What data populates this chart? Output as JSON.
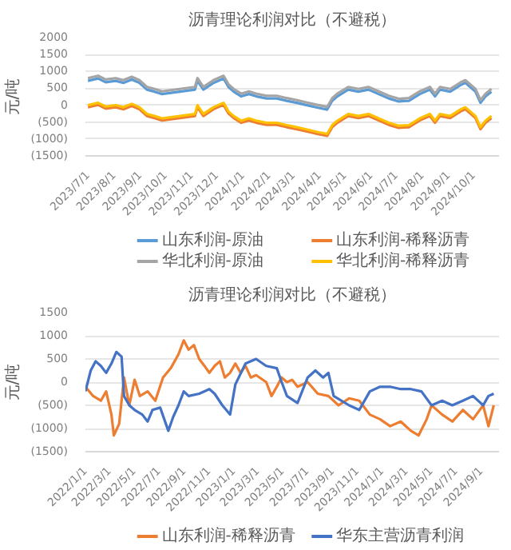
{
  "chart_data": [
    {
      "type": "line",
      "title": "沥青理论利润对比（不避税）",
      "ylabel": "元/吨",
      "legend": "bottom",
      "grid": "y",
      "x": [
        "2023-07-01",
        "2023-07-13",
        "2023-07-22",
        "2023-08-03",
        "2023-08-12",
        "2023-08-22",
        "2023-08-31",
        "2023-09-09",
        "2023-09-18",
        "2023-09-27",
        "2023-11-05",
        "2023-11-08",
        "2023-11-15",
        "2023-11-27",
        "2023-12-09",
        "2023-12-15",
        "2023-12-21",
        "2023-12-30",
        "2024-01-08",
        "2024-01-17",
        "2024-01-29",
        "2024-02-10",
        "2024-02-22",
        "2024-03-05",
        "2024-03-17",
        "2024-03-29",
        "2024-04-10",
        "2024-04-16",
        "2024-04-22",
        "2024-05-05",
        "2024-05-17",
        "2024-05-29",
        "2024-06-10",
        "2024-06-22",
        "2024-07-04",
        "2024-07-16",
        "2024-07-29",
        "2024-08-10",
        "2024-08-16",
        "2024-08-22",
        "2024-09-03",
        "2024-09-15",
        "2024-09-21",
        "2024-10-03",
        "2024-10-09",
        "2024-10-15",
        "2024-10-22"
      ],
      "xlim": [
        "2023-06-28",
        "2024-10-31"
      ],
      "xticks": [
        {
          "value": "2023-07-01",
          "label": "2023/7/1"
        },
        {
          "value": "2023-08-01",
          "label": "2023/8/1"
        },
        {
          "value": "2023-09-01",
          "label": "2023/9/1"
        },
        {
          "value": "2023-10-01",
          "label": "2023/10/1"
        },
        {
          "value": "2023-11-01",
          "label": "2023/11/1"
        },
        {
          "value": "2023-12-01",
          "label": "2023/12/1"
        },
        {
          "value": "2024-01-01",
          "label": "2024/1/1"
        },
        {
          "value": "2024-02-01",
          "label": "2024/2/1"
        },
        {
          "value": "2024-03-01",
          "label": "2024/3/1"
        },
        {
          "value": "2024-04-01",
          "label": "2024/4/1"
        },
        {
          "value": "2024-05-01",
          "label": "2024/5/1"
        },
        {
          "value": "2024-06-01",
          "label": "2024/6/1"
        },
        {
          "value": "2024-07-01",
          "label": "2024/7/1"
        },
        {
          "value": "2024-08-01",
          "label": "2024/8/1"
        },
        {
          "value": "2024-09-01",
          "label": "2024/9/1"
        },
        {
          "value": "2024-10-01",
          "label": "2024/10/1"
        }
      ],
      "ylim": [
        -1500,
        2000
      ],
      "yticks": [
        {
          "value": -1500,
          "label": "(1500)"
        },
        {
          "value": -1000,
          "label": "(1000)"
        },
        {
          "value": -500,
          "label": "(500)"
        },
        0,
        500,
        1000,
        1500,
        2000
      ],
      "series": [
        {
          "name": "山东利润-原油",
          "color": "#5b9bd5",
          "values": [
            720,
            790,
            680,
            720,
            660,
            760,
            660,
            460,
            400,
            330,
            460,
            720,
            460,
            660,
            790,
            530,
            400,
            260,
            330,
            260,
            200,
            200,
            130,
            70,
            0,
            -70,
            -130,
            130,
            260,
            460,
            400,
            460,
            330,
            200,
            110,
            130,
            330,
            460,
            260,
            460,
            400,
            590,
            660,
            400,
            70,
            260,
            400
          ]
        },
        {
          "name": "山东利润-稀释沥青",
          "color": "#ed7d31",
          "values": [
            -60,
            10,
            -100,
            -60,
            -120,
            -20,
            -120,
            -320,
            -380,
            -450,
            -320,
            -60,
            -320,
            -120,
            10,
            -250,
            -380,
            -520,
            -450,
            -520,
            -580,
            -580,
            -650,
            -710,
            -780,
            -850,
            -910,
            -650,
            -520,
            -320,
            -380,
            -320,
            -450,
            -580,
            -670,
            -650,
            -450,
            -320,
            -520,
            -320,
            -380,
            -190,
            -120,
            -380,
            -710,
            -520,
            -380
          ]
        },
        {
          "name": "华北利润-原油",
          "color": "#a5a5a5",
          "values": [
            800,
            870,
            760,
            800,
            740,
            840,
            740,
            540,
            480,
            410,
            540,
            800,
            540,
            740,
            870,
            610,
            480,
            340,
            410,
            340,
            280,
            280,
            210,
            150,
            80,
            10,
            -50,
            210,
            340,
            540,
            480,
            540,
            410,
            280,
            190,
            210,
            410,
            540,
            340,
            540,
            480,
            670,
            740,
            480,
            150,
            340,
            480
          ]
        },
        {
          "name": "华北利润-稀释沥青",
          "color": "#ffc000",
          "values": [
            0,
            70,
            -40,
            0,
            -60,
            40,
            -60,
            -260,
            -320,
            -390,
            -260,
            0,
            -260,
            -60,
            70,
            -190,
            -320,
            -460,
            -390,
            -460,
            -520,
            -520,
            -590,
            -650,
            -720,
            -790,
            -850,
            -590,
            -460,
            -260,
            -320,
            -260,
            -390,
            -520,
            -610,
            -590,
            -390,
            -260,
            -460,
            -260,
            -320,
            -130,
            -60,
            -320,
            -650,
            -460,
            -320
          ]
        }
      ]
    },
    {
      "type": "line",
      "title": "沥青理论利润对比（不避税）",
      "ylabel": "元/吨",
      "legend": "bottom",
      "grid": "y",
      "xlim": [
        "2022-01-01",
        "2024-10-15"
      ],
      "xticks": [
        {
          "value": "2022-01-01",
          "label": "2022/1/1"
        },
        {
          "value": "2022-03-01",
          "label": "2022/3/1"
        },
        {
          "value": "2022-05-01",
          "label": "2022/5/1"
        },
        {
          "value": "2022-07-01",
          "label": "2022/7/1"
        },
        {
          "value": "2022-09-01",
          "label": "2022/9/1"
        },
        {
          "value": "2022-11-01",
          "label": "2022/11/1"
        },
        {
          "value": "2023-01-01",
          "label": "2023/1/1"
        },
        {
          "value": "2023-03-01",
          "label": "2023/3/1"
        },
        {
          "value": "2023-05-01",
          "label": "2023/5/1"
        },
        {
          "value": "2023-07-01",
          "label": "2023/7/1"
        },
        {
          "value": "2023-09-01",
          "label": "2023/9/1"
        },
        {
          "value": "2023-11-01",
          "label": "2023/11/1"
        },
        {
          "value": "2024-01-01",
          "label": "2024/1/1"
        },
        {
          "value": "2024-03-01",
          "label": "2024/3/1"
        },
        {
          "value": "2024-05-01",
          "label": "2024/5/1"
        },
        {
          "value": "2024-07-01",
          "label": "2024/7/1"
        },
        {
          "value": "2024-09-01",
          "label": "2024/9/1"
        }
      ],
      "ylim": [
        -1500,
        1500
      ],
      "yticks": [
        {
          "value": -1500,
          "label": "(1500)"
        },
        {
          "value": -1000,
          "label": "(1000)"
        },
        {
          "value": -500,
          "label": "(500)"
        },
        0,
        500,
        1000,
        1500
      ],
      "series": [
        {
          "name": "山东利润-稀释沥青",
          "color": "#ed7d31",
          "x": [
            "2022-01-01",
            "2022-01-20",
            "2022-02-08",
            "2022-02-21",
            "2022-03-06",
            "2022-03-12",
            "2022-03-25",
            "2022-04-06",
            "2022-04-19",
            "2022-05-02",
            "2022-05-15",
            "2022-06-03",
            "2022-06-22",
            "2022-07-11",
            "2022-07-30",
            "2022-08-18",
            "2022-08-31",
            "2022-09-12",
            "2022-09-25",
            "2022-10-08",
            "2022-10-21",
            "2022-11-02",
            "2022-11-15",
            "2022-11-28",
            "2022-12-10",
            "2022-12-23",
            "2023-01-05",
            "2023-01-18",
            "2023-01-30",
            "2023-02-12",
            "2023-02-25",
            "2023-03-22",
            "2023-04-04",
            "2023-04-17",
            "2023-04-29",
            "2023-05-12",
            "2023-05-25",
            "2023-06-07",
            "2023-07-02",
            "2023-07-27",
            "2023-08-22",
            "2023-09-16",
            "2023-10-12",
            "2023-11-06",
            "2023-12-02",
            "2023-12-27",
            "2024-01-21",
            "2024-02-16",
            "2024-03-12",
            "2024-03-31",
            "2024-04-20",
            "2024-05-02",
            "2024-05-28",
            "2024-06-22",
            "2024-07-18",
            "2024-08-12",
            "2024-09-06",
            "2024-09-19",
            "2024-10-02"
          ],
          "values": [
            -100,
            -300,
            -400,
            -200,
            -700,
            -1150,
            -900,
            100,
            -500,
            50,
            -300,
            -200,
            -400,
            100,
            300,
            600,
            900,
            700,
            800,
            500,
            350,
            200,
            350,
            450,
            100,
            200,
            400,
            200,
            350,
            100,
            150,
            0,
            -300,
            -100,
            100,
            0,
            50,
            -100,
            0,
            -250,
            -300,
            -500,
            -350,
            -400,
            -700,
            -800,
            -950,
            -850,
            -1050,
            -1150,
            -800,
            -500,
            -700,
            -850,
            -600,
            -800,
            -500,
            -950,
            -500
          ]
        },
        {
          "name": "华东主营沥青利润",
          "color": "#4472c4",
          "x": [
            "2022-01-01",
            "2022-01-14",
            "2022-01-26",
            "2022-02-08",
            "2022-02-21",
            "2022-03-06",
            "2022-03-18",
            "2022-03-31",
            "2022-04-06",
            "2022-04-19",
            "2022-05-02",
            "2022-05-21",
            "2022-06-03",
            "2022-06-15",
            "2022-07-04",
            "2022-07-24",
            "2022-08-05",
            "2022-08-18",
            "2022-08-31",
            "2022-09-12",
            "2022-10-08",
            "2022-11-02",
            "2022-11-15",
            "2022-12-04",
            "2022-12-23",
            "2023-01-05",
            "2023-01-30",
            "2023-02-25",
            "2023-03-22",
            "2023-04-17",
            "2023-04-29",
            "2023-05-12",
            "2023-06-07",
            "2023-07-02",
            "2023-07-21",
            "2023-08-09",
            "2023-08-22",
            "2023-09-04",
            "2023-10-12",
            "2023-11-06",
            "2023-12-02",
            "2023-12-27",
            "2024-01-21",
            "2024-02-16",
            "2024-03-12",
            "2024-04-07",
            "2024-05-02",
            "2024-05-28",
            "2024-06-22",
            "2024-07-18",
            "2024-08-12",
            "2024-09-06",
            "2024-09-19",
            "2024-10-02"
          ],
          "values": [
            -200,
            250,
            450,
            350,
            200,
            400,
            650,
            550,
            -300,
            -500,
            -600,
            -700,
            -850,
            -600,
            -550,
            -1050,
            -750,
            -500,
            -200,
            -300,
            -250,
            -150,
            -250,
            -500,
            -700,
            -50,
            400,
            500,
            350,
            300,
            0,
            -300,
            -450,
            100,
            250,
            100,
            200,
            -300,
            -500,
            -600,
            -200,
            -100,
            -100,
            -150,
            -150,
            -200,
            -500,
            -400,
            -500,
            -400,
            -300,
            -500,
            -300,
            -250
          ]
        }
      ]
    }
  ]
}
